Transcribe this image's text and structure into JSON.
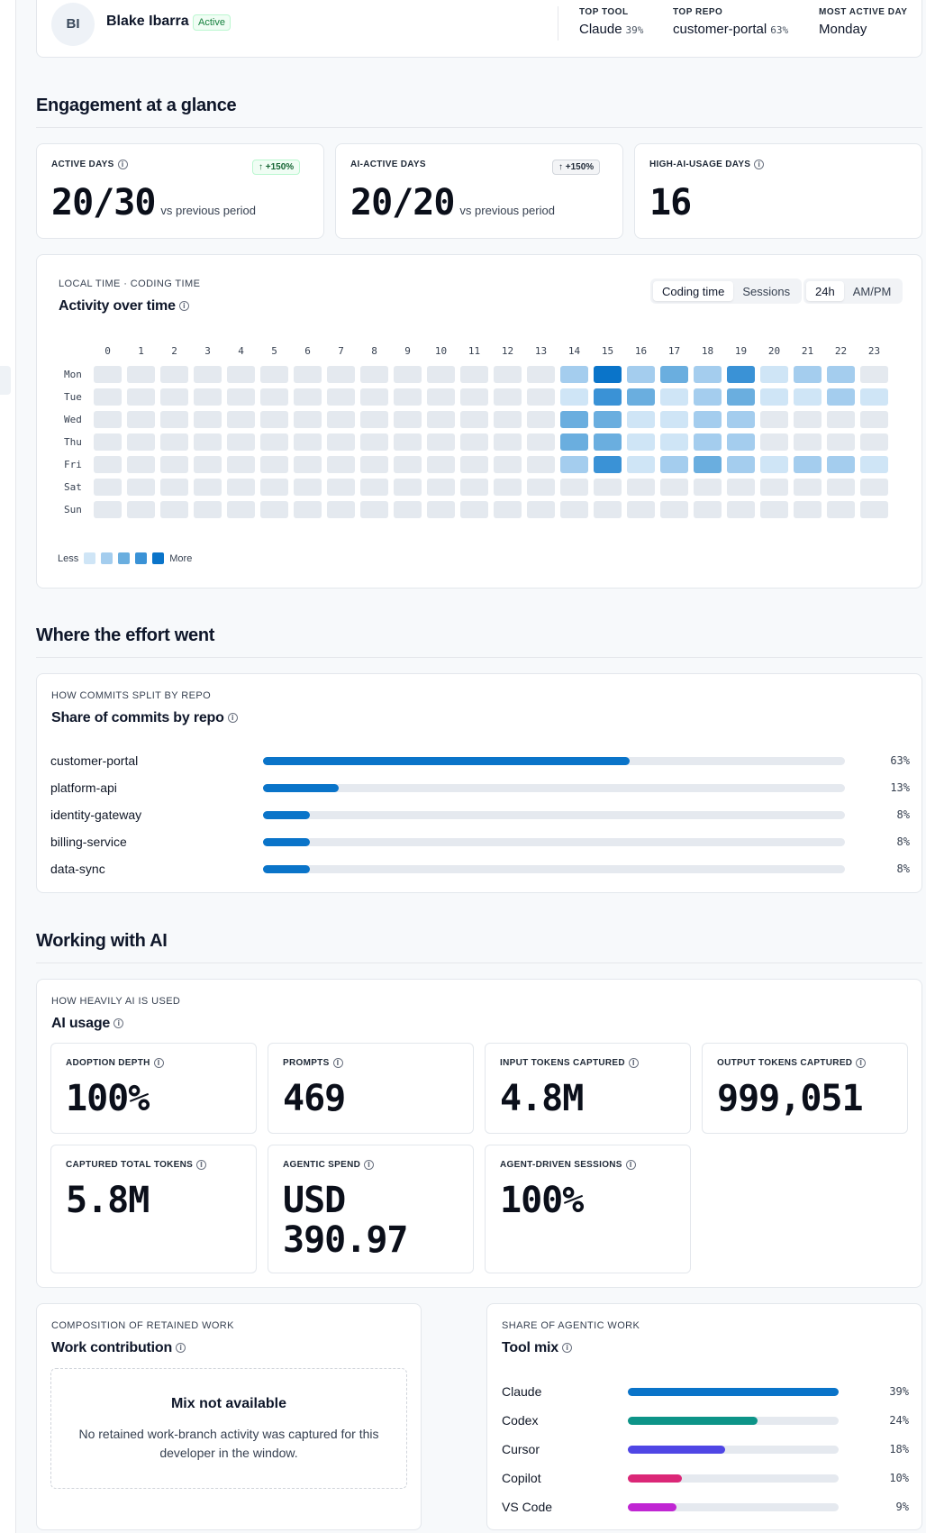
{
  "profile": {
    "initials": "BI",
    "name": "Blake Ibarra",
    "status": "Active",
    "stats": [
      {
        "label": "TOP TOOL",
        "value": "Claude",
        "pct": "39%"
      },
      {
        "label": "TOP REPO",
        "value": "customer-portal",
        "pct": "63%"
      },
      {
        "label": "MOST ACTIVE DAY",
        "value": "Monday",
        "pct": ""
      }
    ]
  },
  "engagement": {
    "title": "Engagement at a glance",
    "kpis": [
      {
        "label": "ACTIVE DAYS",
        "value": "20/30",
        "sub": "vs previous period",
        "delta": "+150%"
      },
      {
        "label": "AI-ACTIVE DAYS",
        "value": "20/20",
        "sub": "vs previous period",
        "delta": "+150%"
      },
      {
        "label": "HIGH-AI-USAGE DAYS",
        "value": "16",
        "sub": "",
        "delta": ""
      }
    ]
  },
  "activity": {
    "eyebrow": "LOCAL TIME · CODING TIME",
    "title": "Activity over time",
    "metric_toggle": [
      "Coding time",
      "Sessions"
    ],
    "clock_toggle": [
      "24h",
      "AM/PM"
    ],
    "hours": [
      "0",
      "1",
      "2",
      "3",
      "4",
      "5",
      "6",
      "7",
      "8",
      "9",
      "10",
      "11",
      "12",
      "13",
      "14",
      "15",
      "16",
      "17",
      "18",
      "19",
      "20",
      "21",
      "22",
      "23"
    ],
    "days": [
      "Mon",
      "Tue",
      "Wed",
      "Thu",
      "Fri",
      "Sat",
      "Sun"
    ],
    "levels": [
      [
        0,
        0,
        0,
        0,
        0,
        0,
        0,
        0,
        0,
        0,
        0,
        0,
        0,
        0,
        2,
        5,
        2,
        3,
        2,
        4,
        1,
        2,
        2,
        0
      ],
      [
        0,
        0,
        0,
        0,
        0,
        0,
        0,
        0,
        0,
        0,
        0,
        0,
        0,
        0,
        1,
        4,
        3,
        1,
        2,
        3,
        1,
        1,
        2,
        1
      ],
      [
        0,
        0,
        0,
        0,
        0,
        0,
        0,
        0,
        0,
        0,
        0,
        0,
        0,
        0,
        3,
        3,
        1,
        1,
        2,
        2,
        0,
        0,
        0,
        0
      ],
      [
        0,
        0,
        0,
        0,
        0,
        0,
        0,
        0,
        0,
        0,
        0,
        0,
        0,
        0,
        3,
        3,
        1,
        1,
        2,
        2,
        0,
        0,
        0,
        0
      ],
      [
        0,
        0,
        0,
        0,
        0,
        0,
        0,
        0,
        0,
        0,
        0,
        0,
        0,
        0,
        2,
        4,
        1,
        2,
        3,
        2,
        1,
        2,
        2,
        1
      ],
      [
        0,
        0,
        0,
        0,
        0,
        0,
        0,
        0,
        0,
        0,
        0,
        0,
        0,
        0,
        0,
        0,
        0,
        0,
        0,
        0,
        0,
        0,
        0,
        0
      ],
      [
        0,
        0,
        0,
        0,
        0,
        0,
        0,
        0,
        0,
        0,
        0,
        0,
        0,
        0,
        0,
        0,
        0,
        0,
        0,
        0,
        0,
        0,
        0,
        0
      ]
    ],
    "legend_less": "Less",
    "legend_more": "More",
    "palette": [
      "#e4e9ef",
      "#cfe5f6",
      "#a4cdee",
      "#6aaedf",
      "#3a92d6",
      "#0a74c9"
    ]
  },
  "effort": {
    "title": "Where the effort went",
    "eyebrow": "HOW COMMITS SPLIT BY REPO",
    "card_title": "Share of commits by repo",
    "repos": [
      {
        "name": "customer-portal",
        "value": 63,
        "label": "63%"
      },
      {
        "name": "platform-api",
        "value": 13,
        "label": "13%"
      },
      {
        "name": "identity-gateway",
        "value": 8,
        "label": "8%"
      },
      {
        "name": "billing-service",
        "value": 8,
        "label": "8%"
      },
      {
        "name": "data-sync",
        "value": 8,
        "label": "8%"
      }
    ]
  },
  "ai": {
    "title": "Working with AI",
    "eyebrow": "HOW HEAVILY AI IS USED",
    "card_title": "AI usage",
    "metrics": [
      {
        "label": "ADOPTION DEPTH",
        "value": "100%"
      },
      {
        "label": "PROMPTS",
        "value": "469"
      },
      {
        "label": "INPUT TOKENS CAPTURED",
        "value": "4.8M"
      },
      {
        "label": "OUTPUT TOKENS CAPTURED",
        "value": "999,051"
      },
      {
        "label": "CAPTURED TOTAL TOKENS",
        "value": "5.8M"
      },
      {
        "label": "AGENTIC SPEND",
        "value": "USD 390.97"
      },
      {
        "label": "AGENT-DRIVEN SESSIONS",
        "value": "100%"
      }
    ]
  },
  "contribution": {
    "eyebrow": "COMPOSITION OF RETAINED WORK",
    "title": "Work contribution",
    "empty_title": "Mix not available",
    "empty_desc": "No retained work-branch activity was captured for this developer in the window."
  },
  "toolmix": {
    "eyebrow": "SHARE OF AGENTIC WORK",
    "title": "Tool mix",
    "tools": [
      {
        "name": "Claude",
        "value": 39,
        "label": "39%",
        "color": "#0a74c9"
      },
      {
        "name": "Codex",
        "value": 24,
        "label": "24%",
        "color": "#0d9488"
      },
      {
        "name": "Cursor",
        "value": 18,
        "label": "18%",
        "color": "#4f46e5"
      },
      {
        "name": "Copilot",
        "value": 10,
        "label": "10%",
        "color": "#db2777"
      },
      {
        "name": "VS Code",
        "value": 9,
        "label": "9%",
        "color": "#c026d3"
      }
    ]
  }
}
